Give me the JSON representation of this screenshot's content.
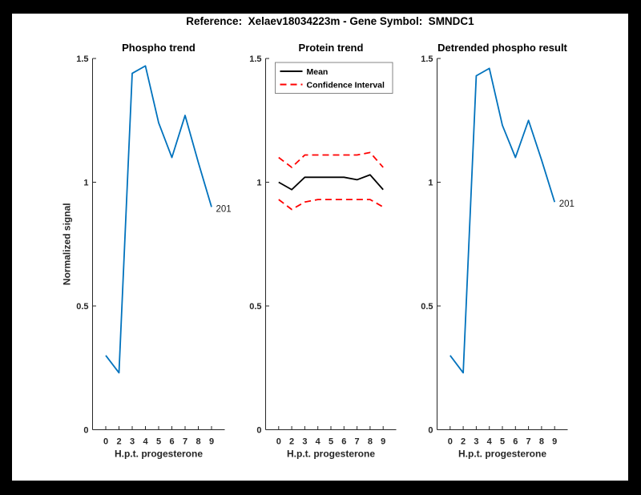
{
  "figure_title": "Reference:  Xelaev18034223m - Gene Symbol:  SMNDC1",
  "colors": {
    "blue": "#0072BD",
    "red": "#FF0000",
    "black": "#000000",
    "axis": "#262626"
  },
  "chart_data": [
    {
      "type": "line",
      "title": "Phospho trend",
      "xlabel": "H.p.t. progesterone",
      "ylabel": "Normalized signal",
      "x_tick_labels": [
        "0",
        "2",
        "3",
        "4",
        "5",
        "6",
        "7",
        "8",
        "9"
      ],
      "ylim": [
        0,
        1.5
      ],
      "y_ticks": [
        0,
        0.5,
        1,
        1.5
      ],
      "y_tick_labels": [
        "0",
        "0.5",
        "1",
        "1.5"
      ],
      "grid": false,
      "series": [
        {
          "name": "phospho-signal",
          "color": "blue",
          "line_style": "solid",
          "values": [
            0.3,
            0.23,
            1.44,
            1.47,
            1.24,
            1.1,
            1.27,
            1.08,
            0.9
          ]
        }
      ],
      "point_label": {
        "text": "201",
        "at": "last-point"
      }
    },
    {
      "type": "line",
      "title": "Protein trend",
      "xlabel": "H.p.t. progesterone",
      "ylabel": "",
      "x_tick_labels": [
        "0",
        "2",
        "3",
        "4",
        "5",
        "6",
        "7",
        "8",
        "9"
      ],
      "ylim": [
        0,
        1.5
      ],
      "y_ticks": [
        0,
        0.5,
        1,
        1.5
      ],
      "y_tick_labels": [
        "0",
        "0.5",
        "1",
        "1.5"
      ],
      "grid": false,
      "series": [
        {
          "name": "mean",
          "color": "black",
          "line_style": "solid",
          "values": [
            1.0,
            0.97,
            1.02,
            1.02,
            1.02,
            1.02,
            1.01,
            1.03,
            0.97
          ]
        },
        {
          "name": "ci-upper",
          "color": "red",
          "line_style": "dashed",
          "values": [
            1.1,
            1.06,
            1.11,
            1.11,
            1.11,
            1.11,
            1.11,
            1.12,
            1.06
          ]
        },
        {
          "name": "ci-lower",
          "color": "red",
          "line_style": "dashed",
          "values": [
            0.93,
            0.89,
            0.92,
            0.93,
            0.93,
            0.93,
            0.93,
            0.93,
            0.9
          ]
        }
      ],
      "legend": {
        "position": "top-inside",
        "entries": [
          {
            "label": "Mean",
            "color": "black",
            "line_style": "solid"
          },
          {
            "label": "Confidence Interval",
            "color": "red",
            "line_style": "dashed"
          }
        ]
      }
    },
    {
      "type": "line",
      "title": "Detrended phospho result",
      "xlabel": "H.p.t. progesterone",
      "ylabel": "",
      "x_tick_labels": [
        "0",
        "2",
        "3",
        "4",
        "5",
        "6",
        "7",
        "8",
        "9"
      ],
      "ylim": [
        0,
        1.5
      ],
      "y_ticks": [
        0,
        0.5,
        1,
        1.5
      ],
      "y_tick_labels": [
        "0",
        "0.5",
        "1",
        "1.5"
      ],
      "grid": false,
      "series": [
        {
          "name": "detrended-phospho",
          "color": "blue",
          "line_style": "solid",
          "values": [
            0.3,
            0.23,
            1.43,
            1.46,
            1.23,
            1.1,
            1.25,
            1.09,
            0.92
          ]
        }
      ],
      "point_label": {
        "text": "201",
        "at": "last-point"
      }
    }
  ]
}
